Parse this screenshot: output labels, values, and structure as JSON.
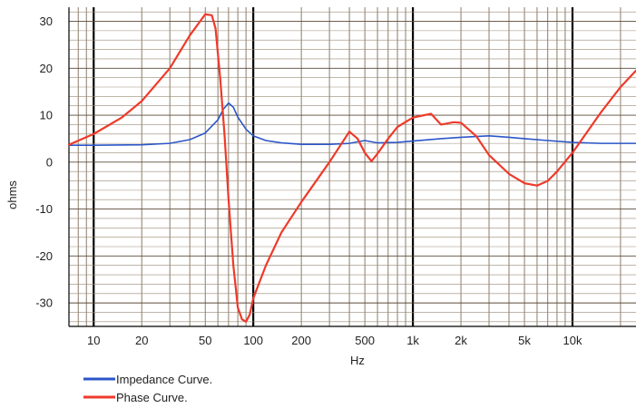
{
  "chart_data": {
    "type": "line",
    "xlabel": "Hz",
    "ylabel": "ohms",
    "xscale": "log",
    "xlim": [
      7,
      25000
    ],
    "ylim": [
      -35,
      33
    ],
    "grid": true,
    "legend_position": "bottom-left",
    "x_ticks": [
      {
        "value": 10,
        "label": "10"
      },
      {
        "value": 20,
        "label": "20"
      },
      {
        "value": 50,
        "label": "50"
      },
      {
        "value": 100,
        "label": "100"
      },
      {
        "value": 200,
        "label": "200"
      },
      {
        "value": 500,
        "label": "500"
      },
      {
        "value": 1000,
        "label": "1k"
      },
      {
        "value": 2000,
        "label": "2k"
      },
      {
        "value": 5000,
        "label": "5k"
      },
      {
        "value": 10000,
        "label": "10k"
      }
    ],
    "y_ticks": [
      {
        "value": 30,
        "label": "30"
      },
      {
        "value": 20,
        "label": "20"
      },
      {
        "value": 10,
        "label": "10"
      },
      {
        "value": 0,
        "label": "0"
      },
      {
        "value": -10,
        "label": "-10"
      },
      {
        "value": -20,
        "label": "-20"
      },
      {
        "value": -30,
        "label": "-30"
      }
    ],
    "series": [
      {
        "name": "Impedance Curve.",
        "color": "#2b56c8",
        "points": [
          [
            7,
            3.6
          ],
          [
            10,
            3.6
          ],
          [
            20,
            3.7
          ],
          [
            30,
            4.0
          ],
          [
            40,
            4.8
          ],
          [
            50,
            6.2
          ],
          [
            60,
            9.0
          ],
          [
            65,
            11.3
          ],
          [
            70,
            12.6
          ],
          [
            75,
            11.7
          ],
          [
            80,
            9.6
          ],
          [
            90,
            7.0
          ],
          [
            100,
            5.6
          ],
          [
            120,
            4.6
          ],
          [
            150,
            4.1
          ],
          [
            200,
            3.8
          ],
          [
            300,
            3.8
          ],
          [
            400,
            4.0
          ],
          [
            500,
            4.6
          ],
          [
            600,
            4.1
          ],
          [
            800,
            4.2
          ],
          [
            1000,
            4.5
          ],
          [
            1500,
            5.0
          ],
          [
            2000,
            5.3
          ],
          [
            3000,
            5.6
          ],
          [
            4000,
            5.3
          ],
          [
            5000,
            5.0
          ],
          [
            7000,
            4.6
          ],
          [
            10000,
            4.2
          ],
          [
            15000,
            4.0
          ],
          [
            25000,
            4.0
          ]
        ]
      },
      {
        "name": "Phase Curve.",
        "color": "#ee3a2a",
        "points": [
          [
            7,
            3.7
          ],
          [
            10,
            6.0
          ],
          [
            15,
            9.5
          ],
          [
            20,
            13.0
          ],
          [
            30,
            20.0
          ],
          [
            40,
            27.0
          ],
          [
            50,
            31.5
          ],
          [
            55,
            31.3
          ],
          [
            58,
            28.5
          ],
          [
            62,
            18.0
          ],
          [
            66,
            6.0
          ],
          [
            70,
            -8.0
          ],
          [
            75,
            -22.0
          ],
          [
            80,
            -31.0
          ],
          [
            85,
            -33.5
          ],
          [
            90,
            -34.0
          ],
          [
            95,
            -32.5
          ],
          [
            100,
            -29.0
          ],
          [
            120,
            -22.0
          ],
          [
            150,
            -15.0
          ],
          [
            200,
            -8.5
          ],
          [
            300,
            0.0
          ],
          [
            400,
            6.5
          ],
          [
            450,
            5.0
          ],
          [
            500,
            2.0
          ],
          [
            550,
            0.2
          ],
          [
            600,
            1.8
          ],
          [
            700,
            5.0
          ],
          [
            800,
            7.5
          ],
          [
            1000,
            9.5
          ],
          [
            1300,
            10.3
          ],
          [
            1500,
            8.0
          ],
          [
            1800,
            8.5
          ],
          [
            2000,
            8.4
          ],
          [
            2500,
            5.5
          ],
          [
            3000,
            1.5
          ],
          [
            4000,
            -2.5
          ],
          [
            5000,
            -4.5
          ],
          [
            6000,
            -5.0
          ],
          [
            7000,
            -4.0
          ],
          [
            8000,
            -2.0
          ],
          [
            10000,
            2.0
          ],
          [
            15000,
            10.5
          ],
          [
            20000,
            16.0
          ],
          [
            25000,
            19.5
          ]
        ]
      }
    ]
  }
}
